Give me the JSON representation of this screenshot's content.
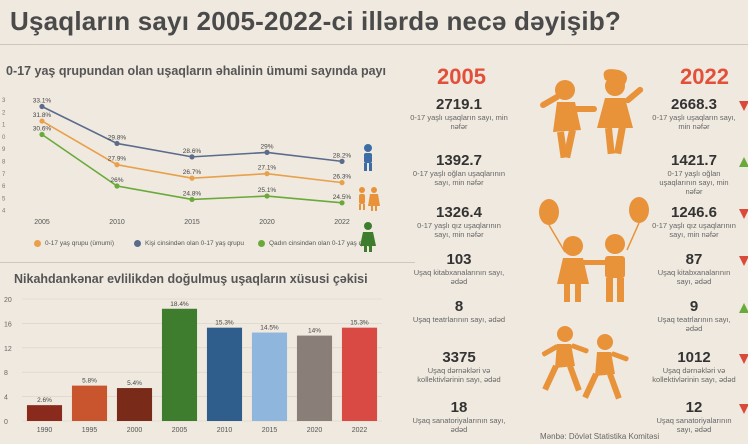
{
  "title": "Uşaqların sayı 2005-2022-ci illərdə necə dəyişib?",
  "line_section_title": "0-17 yaş qrupundan olan uşaqların əhalinin ümumi sayında payı",
  "bar_section_title": "Nikahdankənar evlilikdən doğulmuş uşaqların xüsusi çəkisi",
  "year_left": "2005",
  "year_right": "2022",
  "source": "Mənbə: Dövlət Statistika Komitəsi",
  "legend": [
    {
      "label": "0-17 yaş qrupu (ümumi)",
      "color": "#e8a04a"
    },
    {
      "label": "Kişi cinsindən olan 0-17 yaş qrupu",
      "color": "#5b6b8c"
    },
    {
      "label": "Qadın cinsindən olan 0-17 yaş qrupu",
      "color": "#6aaa3a"
    }
  ],
  "chart_data": [
    {
      "type": "line",
      "x": [
        "2005",
        "2010",
        "2015",
        "2020",
        "2022"
      ],
      "y_ticks": [
        "3",
        "2",
        "1",
        "0",
        "9",
        "8",
        "7",
        "6",
        "5",
        "4"
      ],
      "series": [
        {
          "name": "Kişi cinsindən olan 0-17 yaş qrupu",
          "values": [
            33.1,
            29.8,
            28.6,
            29,
            28.2
          ],
          "labels": [
            "33.1%",
            "29.8%",
            "28.6%",
            "29%",
            "28.2%"
          ],
          "color": "#5b6b8c"
        },
        {
          "name": "0-17 yaş qrupu (ümumi)",
          "values": [
            31.8,
            27.9,
            26.7,
            27.1,
            26.3
          ],
          "labels": [
            "31.8%",
            "27.9%",
            "26.7%",
            "27.1%",
            "26.3%"
          ],
          "color": "#e8a04a"
        },
        {
          "name": "Qadın cinsindən olan 0-17 yaş qrupu",
          "values": [
            30.6,
            26,
            24.8,
            25.1,
            24.5
          ],
          "labels": [
            "30.6%",
            "26%",
            "24.8%",
            "25.1%",
            "24.5%"
          ],
          "color": "#6aaa3a"
        }
      ],
      "ylim": [
        23.5,
        33.5
      ]
    },
    {
      "type": "bar",
      "categories": [
        "1990",
        "1995",
        "2000",
        "2005",
        "2010",
        "2015",
        "2020",
        "2022"
      ],
      "values": [
        2.6,
        5.8,
        5.4,
        18.4,
        15.3,
        14.5,
        14,
        15.3
      ],
      "labels": [
        "2.6%",
        "5.8%",
        "5.4%",
        "18.4%",
        "15.3%",
        "14.5%",
        "14%",
        "15.3%"
      ],
      "colors": [
        "#8a2a1c",
        "#c8552e",
        "#7a2a18",
        "#3e7d2e",
        "#2f5e8c",
        "#8fb6dd",
        "#8a7f78",
        "#d94a44"
      ],
      "y_ticks": [
        "0",
        "4",
        "8",
        "12",
        "16",
        "20"
      ],
      "ylim": [
        0,
        20
      ]
    }
  ],
  "stats_left": [
    {
      "num": "2719.1",
      "lbl": "0-17 yaşlı uşaqların sayı, min nəfər"
    },
    {
      "num": "1392.7",
      "lbl": "0-17 yaşlı oğlan uşaqlarının sayı, min nəfər"
    },
    {
      "num": "1326.4",
      "lbl": "0-17 yaşlı qız uşaqlarının sayı, min nəfər"
    },
    {
      "num": "103",
      "lbl": "Uşaq kitabxanalarının sayı, ədəd"
    },
    {
      "num": "8",
      "lbl": "Uşaq teatrlarının sayı, ədəd"
    },
    {
      "num": "3375",
      "lbl": "Uşaq dərnəkləri və kollektivlərinin sayı, ədəd"
    },
    {
      "num": "18",
      "lbl": "Uşaq sanatoriyalarının sayı, ədəd"
    }
  ],
  "stats_right": [
    {
      "num": "2668.3",
      "lbl": "0-17 yaşlı uşaqların sayı, min nəfər",
      "trend": "down"
    },
    {
      "num": "1421.7",
      "lbl": "0-17 yaşlı oğlan uşaqlarının sayı, min nəfər",
      "trend": "up"
    },
    {
      "num": "1246.6",
      "lbl": "0-17 yaşlı qız uşaqlarının sayı, min nəfər",
      "trend": "down"
    },
    {
      "num": "87",
      "lbl": "Uşaq kitabxanalarının sayı, ədəd",
      "trend": "down"
    },
    {
      "num": "9",
      "lbl": "Uşaq teatrlarının sayı, ədəd",
      "trend": "up"
    },
    {
      "num": "1012",
      "lbl": "Uşaq dərnəkləri və kollektivlərinin sayı, ədəd",
      "trend": "down"
    },
    {
      "num": "12",
      "lbl": "Uşaq sanatoriyalarının sayı, ədəd",
      "trend": "down"
    }
  ],
  "colors": {
    "accent": "#e2503a",
    "orange": "#e8923a",
    "up": "#6aaa3a",
    "down": "#d94a3a"
  }
}
